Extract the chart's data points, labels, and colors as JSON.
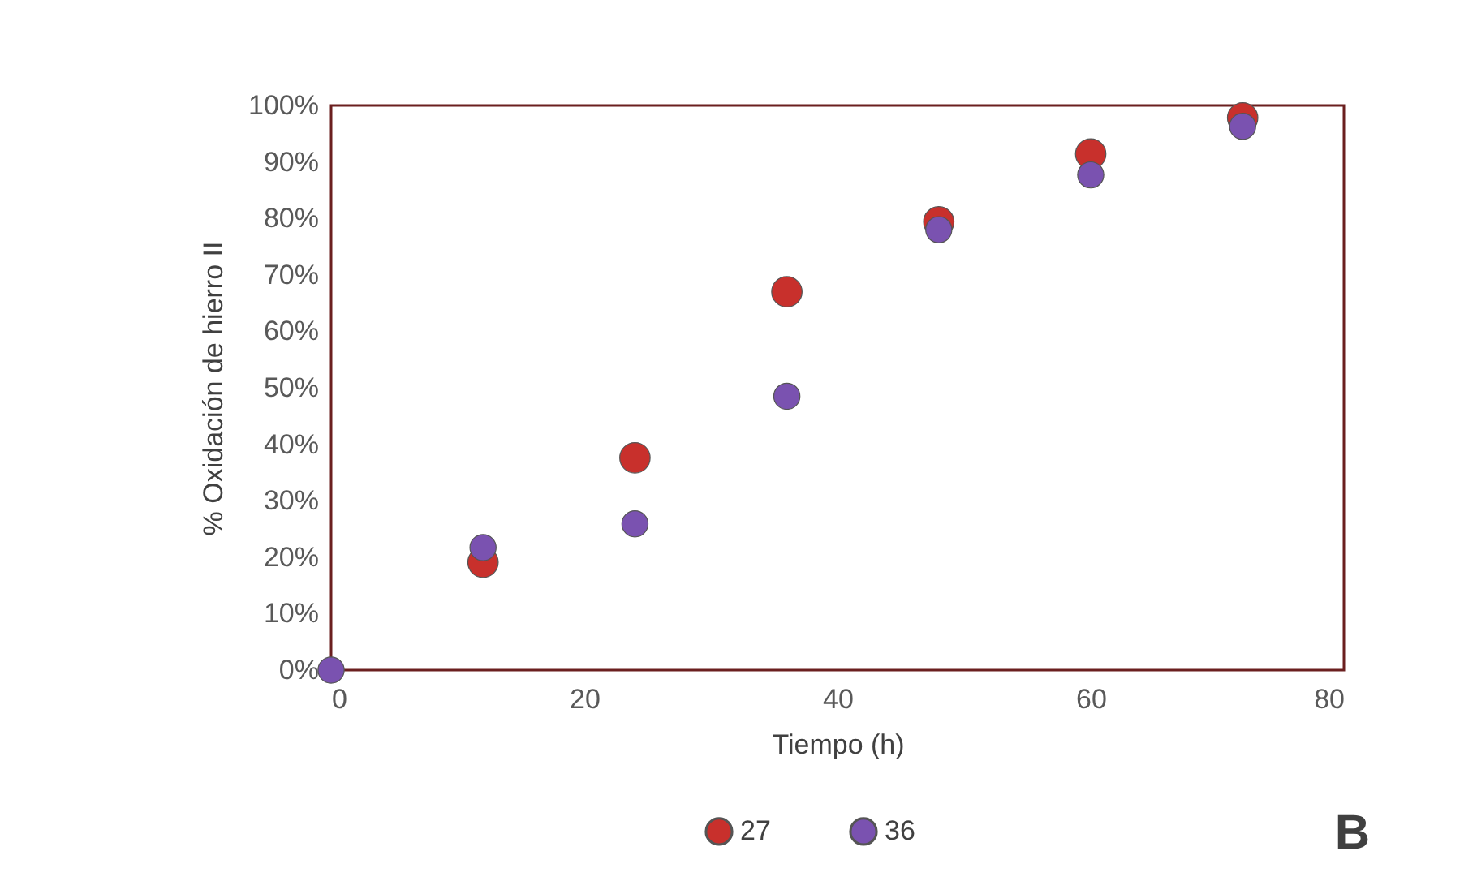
{
  "chart_data": {
    "type": "scatter",
    "xlabel": "Tiempo (h)",
    "ylabel": "% Oxidación de hierro II",
    "x": [
      0,
      12,
      24,
      36,
      48,
      60,
      72
    ],
    "series": [
      {
        "name": "27",
        "color": "#c8302c",
        "values": [
          null,
          19.1,
          37.6,
          67.0,
          79.4,
          91.4,
          97.8
        ]
      },
      {
        "name": "36",
        "color": "#7a52b0",
        "values": [
          0,
          21.7,
          25.9,
          48.5,
          78.0,
          87.7,
          96.3
        ]
      }
    ],
    "xlim": [
      0,
      80
    ],
    "xticks": [
      0,
      20,
      40,
      60,
      80
    ],
    "ylim": [
      0,
      100
    ],
    "yticks": [
      {
        "value": 0,
        "label": "0%"
      },
      {
        "value": 10,
        "label": "10%"
      },
      {
        "value": 20,
        "label": "20%"
      },
      {
        "value": 30,
        "label": "30%"
      },
      {
        "value": 40,
        "label": "40%"
      },
      {
        "value": 50,
        "label": "50%"
      },
      {
        "value": 60,
        "label": "60%"
      },
      {
        "value": 70,
        "label": "70%"
      },
      {
        "value": 80,
        "label": "80%"
      },
      {
        "value": 90,
        "label": "90%"
      },
      {
        "value": 100,
        "label": "100%"
      }
    ],
    "grid": false,
    "legend": "bottom",
    "marker": "circle",
    "annotations": [
      "B"
    ]
  }
}
